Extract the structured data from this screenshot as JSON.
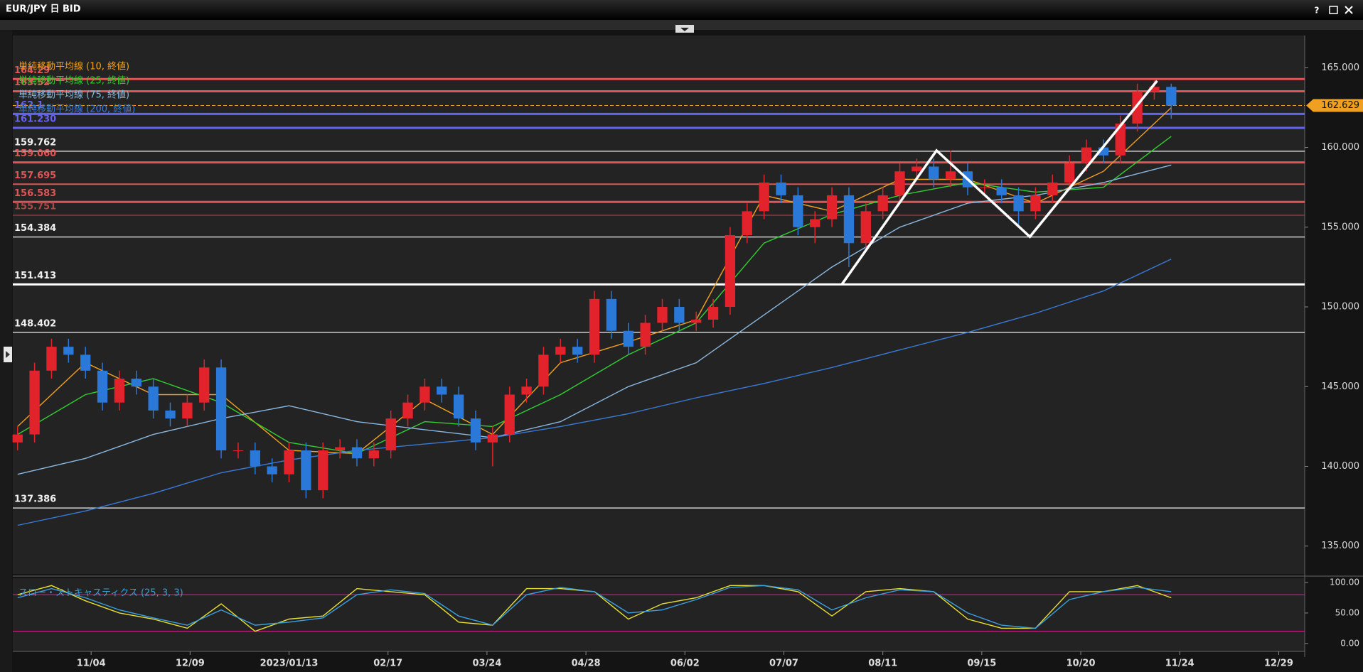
{
  "window": {
    "help": "?"
  },
  "chart_data": [
    {
      "type": "candlestick",
      "title": "EUR/JPY 日 BID",
      "x": [
        -26,
        -20,
        -14,
        -8,
        -2,
        4,
        10,
        16,
        22,
        28,
        34,
        40,
        46,
        52,
        58,
        64,
        70,
        76,
        82,
        88,
        94,
        100,
        106,
        112,
        118,
        124,
        130,
        136,
        142,
        148,
        154,
        160,
        166,
        172,
        178,
        184,
        190,
        196,
        202,
        208,
        214,
        220,
        226,
        232,
        238,
        244,
        250,
        256,
        262,
        268,
        274,
        280,
        286,
        292,
        298,
        304,
        310,
        316,
        322,
        328,
        334,
        340,
        346,
        352,
        358,
        364,
        370,
        376,
        382
      ],
      "open": [
        141.5,
        142.0,
        146.0,
        147.5,
        147.0,
        146.0,
        144.0,
        145.5,
        145.0,
        143.5,
        143.0,
        144.0,
        146.2,
        141.0,
        141.0,
        140.0,
        139.5,
        141.0,
        138.5,
        141.0,
        141.2,
        140.5,
        141.0,
        143.0,
        144.0,
        145.0,
        144.5,
        143.0,
        141.5,
        142.0,
        144.5,
        145.0,
        147.0,
        147.5,
        147.0,
        150.5,
        148.5,
        147.5,
        149.0,
        150.0,
        149.0,
        149.2,
        150.0,
        154.5,
        156.0,
        157.8,
        157.0,
        155.0,
        155.5,
        157.0,
        154.0,
        156.0,
        157.0,
        158.5,
        158.8,
        158.0,
        158.5,
        157.5,
        157.5,
        157.0,
        156.0,
        157.0,
        157.8,
        159.0,
        160.0,
        159.5,
        161.5,
        163.5,
        163.8
      ],
      "high": [
        142.5,
        146.5,
        148.0,
        148.0,
        147.5,
        146.5,
        146.0,
        146.0,
        145.5,
        144.0,
        144.5,
        146.7,
        146.7,
        141.5,
        141.5,
        140.5,
        141.5,
        141.5,
        141.5,
        141.7,
        141.7,
        141.5,
        143.5,
        144.5,
        145.5,
        145.5,
        145.0,
        143.5,
        142.5,
        145.0,
        145.5,
        147.5,
        148.0,
        148.0,
        151.0,
        151.0,
        149.0,
        149.5,
        150.5,
        150.5,
        149.7,
        150.5,
        155.0,
        156.5,
        158.3,
        158.3,
        157.5,
        156.0,
        157.5,
        157.5,
        156.5,
        157.5,
        159.0,
        159.3,
        159.3,
        159.8,
        159.0,
        158.0,
        158.0,
        157.5,
        157.5,
        158.3,
        159.5,
        160.5,
        160.5,
        162.0,
        164.0,
        164.2,
        164.0
      ],
      "low": [
        141.0,
        141.5,
        145.5,
        146.5,
        145.5,
        143.5,
        143.5,
        144.5,
        143.0,
        142.5,
        142.5,
        143.5,
        140.5,
        140.5,
        139.5,
        139.0,
        139.0,
        138.0,
        138.0,
        140.5,
        140.0,
        140.0,
        140.5,
        142.5,
        143.5,
        144.0,
        142.5,
        141.0,
        140.0,
        141.5,
        144.0,
        144.5,
        146.5,
        146.5,
        146.5,
        148.0,
        147.0,
        147.0,
        148.5,
        148.5,
        148.5,
        148.7,
        149.5,
        154.0,
        155.5,
        156.5,
        154.5,
        154.0,
        155.0,
        152.5,
        153.5,
        155.5,
        156.5,
        158.0,
        157.5,
        157.5,
        157.0,
        157.0,
        156.5,
        155.0,
        155.5,
        156.5,
        157.3,
        158.5,
        159.0,
        159.0,
        161.0,
        163.0,
        161.8
      ],
      "close": [
        142.0,
        146.0,
        147.5,
        147.0,
        146.0,
        144.0,
        145.5,
        145.0,
        143.5,
        143.0,
        144.0,
        146.2,
        141.0,
        141.0,
        140.0,
        139.5,
        141.0,
        138.5,
        141.0,
        141.2,
        140.5,
        141.0,
        143.0,
        144.0,
        145.0,
        144.5,
        143.0,
        141.5,
        142.0,
        144.5,
        145.0,
        147.0,
        147.5,
        147.0,
        150.5,
        148.5,
        147.5,
        149.0,
        150.0,
        149.0,
        149.2,
        150.0,
        154.5,
        156.0,
        157.8,
        157.0,
        155.0,
        155.5,
        157.0,
        154.0,
        156.0,
        157.0,
        158.5,
        158.8,
        158.0,
        158.5,
        157.5,
        157.5,
        157.0,
        156.0,
        157.0,
        157.8,
        159.0,
        160.0,
        159.5,
        161.5,
        163.5,
        163.8,
        162.629
      ],
      "up_color": "#e3232b",
      "down_color": "#2a78d8",
      "series": [
        {
          "name": "単純移動平均線 (10, 終値)",
          "color": "#f0a020",
          "x": [
            -26,
            -2,
            22,
            46,
            70,
            94,
            118,
            142,
            166,
            190,
            214,
            238,
            262,
            286,
            310,
            334,
            358,
            382
          ],
          "values": [
            142.5,
            146.5,
            144.5,
            144.5,
            141.0,
            140.8,
            144.2,
            142.0,
            146.5,
            147.8,
            149.2,
            157.0,
            156.0,
            158.0,
            158.0,
            156.5,
            158.5,
            162.5
          ]
        },
        {
          "name": "単純移動平均線 (25, 終値)",
          "color": "#30d030",
          "x": [
            -26,
            -2,
            22,
            46,
            70,
            94,
            118,
            142,
            166,
            190,
            214,
            238,
            262,
            286,
            310,
            334,
            358,
            382
          ],
          "values": [
            142.0,
            144.5,
            145.5,
            144.0,
            141.5,
            140.8,
            142.8,
            142.5,
            144.5,
            147.0,
            149.0,
            154.0,
            155.8,
            157.0,
            157.8,
            157.2,
            157.5,
            160.7
          ]
        },
        {
          "name": "単純移動平均線 (75, 終値)",
          "color": "#8ab8e0",
          "x": [
            -26,
            -2,
            22,
            46,
            70,
            94,
            118,
            142,
            166,
            190,
            214,
            238,
            262,
            286,
            310,
            334,
            358,
            382
          ],
          "values": [
            139.5,
            140.5,
            142.0,
            143.0,
            143.8,
            142.8,
            142.3,
            141.8,
            142.8,
            145.0,
            146.5,
            149.5,
            152.5,
            155.0,
            156.5,
            157.0,
            157.8,
            158.9
          ]
        },
        {
          "name": "単純移動平均線 (200, 終値)",
          "color": "#3a7ad8",
          "x": [
            -26,
            -2,
            22,
            46,
            70,
            94,
            118,
            142,
            166,
            190,
            214,
            238,
            262,
            286,
            310,
            334,
            358,
            382
          ],
          "values": [
            136.3,
            137.2,
            138.3,
            139.6,
            140.4,
            141.0,
            141.4,
            141.8,
            142.5,
            143.3,
            144.3,
            145.2,
            146.2,
            147.3,
            148.4,
            149.6,
            151.0,
            153.0
          ]
        }
      ],
      "levels": [
        {
          "value": 164.29,
          "color": "#e05555",
          "width": 3
        },
        {
          "value": 163.52,
          "color": "#e05555",
          "width": 3
        },
        {
          "value": 162.1,
          "color": "#6464f0",
          "width": 3
        },
        {
          "value": 161.23,
          "label": "161.230",
          "color": "#6464f0",
          "width": 3
        },
        {
          "value": 159.762,
          "color": "#cfcfcf",
          "width": 1.5
        },
        {
          "value": 159.06,
          "label": "159.060",
          "color": "#e05555",
          "width": 3
        },
        {
          "value": 157.695,
          "color": "#e05555",
          "width": 2
        },
        {
          "value": 156.583,
          "color": "#e05555",
          "width": 3
        },
        {
          "value": 155.751,
          "color": "#b04848",
          "width": 1
        },
        {
          "value": 154.384,
          "color": "#cfcfcf",
          "width": 1.5
        },
        {
          "value": 151.413,
          "color": "#ffffff",
          "width": 3
        },
        {
          "value": 148.402,
          "color": "#cfcfcf",
          "width": 1.5
        },
        {
          "value": 137.386,
          "color": "#cfcfcf",
          "width": 1.5
        }
      ],
      "last_price": 162.629,
      "last_price_color": "#f0a020",
      "drawing": {
        "x": [
          265.5,
          299,
          332,
          377
        ],
        "y": [
          151.413,
          159.81,
          154.4,
          164.18
        ],
        "color": "#ffffff"
      },
      "xlim": [
        -27.7,
        429.2
      ],
      "ylim": [
        133.25,
        167.02
      ],
      "yticks": [
        {
          "value": 135,
          "label": "135.000"
        },
        {
          "value": 140,
          "label": "140.000"
        },
        {
          "value": 145,
          "label": "145.000"
        },
        {
          "value": 150,
          "label": "150.000"
        },
        {
          "value": 155,
          "label": "155.000"
        },
        {
          "value": 160,
          "label": "160.000"
        },
        {
          "value": 165,
          "label": "165.000"
        }
      ]
    },
    {
      "type": "line",
      "title": "スロー・ストキャスティクス (25, 3, 3)",
      "title_color": "#3aa0d0",
      "series": [
        {
          "color": "#e8e030",
          "x": [
            -26,
            -14,
            -2,
            10,
            22,
            34,
            46,
            58,
            70,
            82,
            94,
            106,
            118,
            130,
            142,
            154,
            166,
            178,
            190,
            202,
            214,
            226,
            238,
            250,
            262,
            274,
            286,
            298,
            310,
            322,
            334,
            346,
            358,
            370,
            382
          ],
          "values": [
            80,
            95,
            70,
            50,
            40,
            25,
            65,
            20,
            40,
            45,
            90,
            85,
            80,
            35,
            30,
            90,
            90,
            85,
            40,
            65,
            75,
            95,
            95,
            85,
            45,
            85,
            90,
            85,
            40,
            25,
            25,
            85,
            85,
            95,
            75
          ]
        },
        {
          "color": "#3aa0e0",
          "x": [
            -26,
            -14,
            -2,
            10,
            22,
            34,
            46,
            58,
            70,
            82,
            94,
            106,
            118,
            130,
            142,
            154,
            166,
            178,
            190,
            202,
            214,
            226,
            238,
            250,
            262,
            274,
            286,
            298,
            310,
            322,
            334,
            346,
            358,
            370,
            382
          ],
          "values": [
            75,
            90,
            75,
            55,
            42,
            30,
            55,
            30,
            35,
            42,
            80,
            88,
            82,
            45,
            30,
            80,
            92,
            85,
            50,
            55,
            72,
            92,
            95,
            88,
            55,
            75,
            88,
            85,
            50,
            30,
            25,
            72,
            85,
            92,
            85
          ]
        }
      ],
      "bands": [
        80,
        20
      ],
      "band_color": "#d0208a",
      "xlim": [
        -27.7,
        429.2
      ],
      "ylim": [
        -13,
        107
      ],
      "yticks": [
        {
          "value": 0,
          "label": "0.00"
        },
        {
          "value": 50,
          "label": "50.00"
        },
        {
          "value": 100,
          "label": "100.00"
        }
      ],
      "xticks": [
        {
          "value": 0,
          "label": "11/04"
        },
        {
          "value": 35,
          "label": "12/09"
        },
        {
          "value": 70,
          "label": "2023/01/13"
        },
        {
          "value": 105,
          "label": "02/17"
        },
        {
          "value": 140,
          "label": "03/24"
        },
        {
          "value": 175,
          "label": "04/28"
        },
        {
          "value": 210,
          "label": "06/02"
        },
        {
          "value": 245,
          "label": "07/07"
        },
        {
          "value": 280,
          "label": "08/11"
        },
        {
          "value": 315,
          "label": "09/15"
        },
        {
          "value": 350,
          "label": "10/20"
        },
        {
          "value": 385,
          "label": "11/24"
        },
        {
          "value": 420,
          "label": "12/29"
        }
      ]
    }
  ]
}
